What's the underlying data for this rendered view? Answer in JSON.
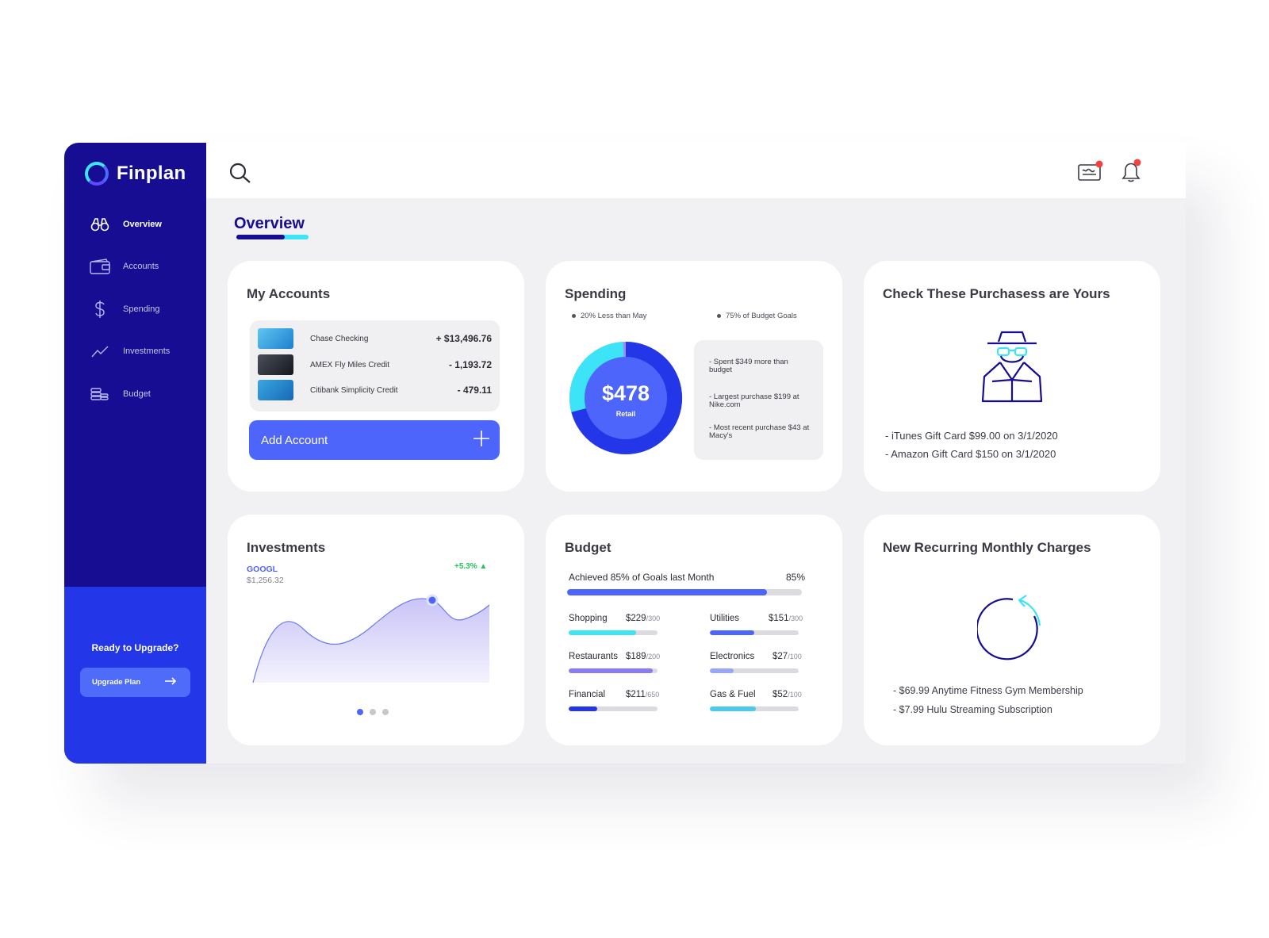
{
  "app": {
    "name": "Finplan"
  },
  "sidebar": {
    "items": [
      {
        "label": "Overview",
        "icon": "binoculars-icon"
      },
      {
        "label": "Accounts",
        "icon": "wallet-icon"
      },
      {
        "label": "Spending",
        "icon": "dollar-icon"
      },
      {
        "label": "Investments",
        "icon": "trend-line-icon"
      },
      {
        "label": "Budget",
        "icon": "coins-icon"
      }
    ],
    "upgrade_title": "Ready to Upgrade?",
    "upgrade_button": "Upgrade Plan"
  },
  "page": {
    "title": "Overview"
  },
  "accounts": {
    "title": "My Accounts",
    "rows": [
      {
        "name": "Chase Checking",
        "amount": "+ $13,496.76"
      },
      {
        "name": "AMEX Fly Miles Credit",
        "amount": "- 1,193.72"
      },
      {
        "name": "Citibank Simplicity Credit",
        "amount": "- 479.11"
      }
    ],
    "add_button": "Add Account"
  },
  "spending": {
    "title": "Spending",
    "note_left": "20% Less than May",
    "note_right": "75% of Budget Goals",
    "amount": "$478",
    "category": "Retail",
    "insights": [
      "- Spent $349 more than budget",
      "- Largest purchase $199 at Nike.com",
      "- Most recent purchase $43 at Macy's"
    ]
  },
  "purchases": {
    "title": "Check These Purchasess are Yours",
    "items": [
      "- iTunes Gift Card $99.00 on 3/1/2020",
      "- Amazon Gift Card $150 on 3/1/2020"
    ]
  },
  "investments": {
    "title": "Investments",
    "ticker": "GOOGL",
    "value": "$1,256.32",
    "change": "+5.3%",
    "pages": 3,
    "active_page": 1
  },
  "budget": {
    "title": "Budget",
    "goal_text": "Achieved 85% of Goals last Month",
    "goal_pct": "85%",
    "goal_fraction": 0.85,
    "categories": [
      {
        "name": "Shopping",
        "value": "$229",
        "limit": "/300",
        "fraction": 0.763,
        "color": "#3de3f7"
      },
      {
        "name": "Utilities",
        "value": "$151",
        "limit": "/300",
        "fraction": 0.503,
        "color": "#4d65fb"
      },
      {
        "name": "Restaurants",
        "value": "$189",
        "limit": "/200",
        "fraction": 0.945,
        "color": "#8b7cf6"
      },
      {
        "name": "Electronics",
        "value": "$27",
        "limit": "/100",
        "fraction": 0.27,
        "color": "#9aa6fb"
      },
      {
        "name": "Financial",
        "value": "$211",
        "limit": "/650",
        "fraction": 0.325,
        "color": "#2337e8"
      },
      {
        "name": "Gas & Fuel",
        "value": "$52",
        "limit": "/100",
        "fraction": 0.52,
        "color": "#4cc9f0"
      }
    ]
  },
  "recurring": {
    "title": "New Recurring Monthly Charges",
    "items": [
      "- $69.99 Anytime Fitness Gym Membership",
      "- $7.99 Hulu Streaming Subscription"
    ]
  },
  "colors": {
    "sidebar": "#160d93",
    "accent": "#4d65fb",
    "cyan": "#3de3f7",
    "positive": "#22c55e",
    "alert": "#ef4444"
  }
}
